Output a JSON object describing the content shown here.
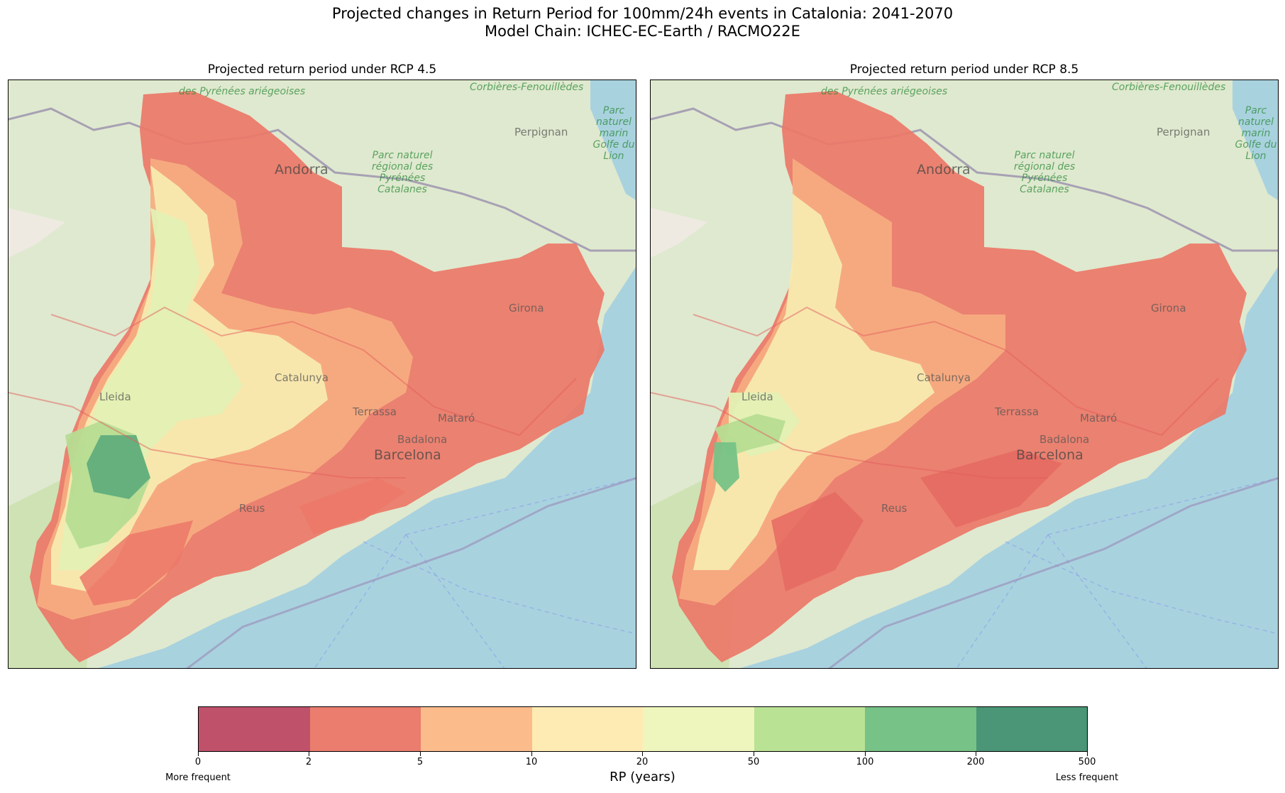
{
  "figure": {
    "title_line1": "Projected changes in Return Period for 100mm/24h events in Catalonia: 2041-2070",
    "title_line2": "Model Chain: ICHEC-EC-Earth / RACMO22E"
  },
  "panels": [
    {
      "title": "Projected return period under RCP 4.5",
      "place_labels": [
        "Andorra",
        "Perpignan",
        "Girona",
        "Lleida",
        "Catalunya",
        "Terrassa",
        "Mataró",
        "Badalona",
        "Barcelona",
        "Reus",
        "Corbières-Fenouillèdes",
        "des Pyrénées ariégeoises",
        "Parc naturel régional des Pyrénées Catalanes",
        "Parc naturel marin Golfe du Lion"
      ]
    },
    {
      "title": "Projected return period under RCP 8.5",
      "place_labels": [
        "Andorra",
        "Perpignan",
        "Girona",
        "Lleida",
        "Catalunya",
        "Terrassa",
        "Mataró",
        "Badalona",
        "Barcelona",
        "Reus",
        "Corbières-Fenouillèdes",
        "des Pyrénées ariégeoises",
        "Parc naturel régional des Pyrénées Catalanes",
        "Parc naturel marin Golfe du Lion"
      ]
    }
  ],
  "colorbar": {
    "label": "RP (years)",
    "ticks": [
      "0",
      "2",
      "5",
      "10",
      "20",
      "50",
      "100",
      "200",
      "500"
    ],
    "colors": [
      "#c0516a",
      "#ea7d6e",
      "#fbbb8b",
      "#fdebb3",
      "#eef6bd",
      "#bae295",
      "#77c287",
      "#4a9677"
    ],
    "left_end_label": "More frequent",
    "right_end_label": "Less frequent"
  }
}
